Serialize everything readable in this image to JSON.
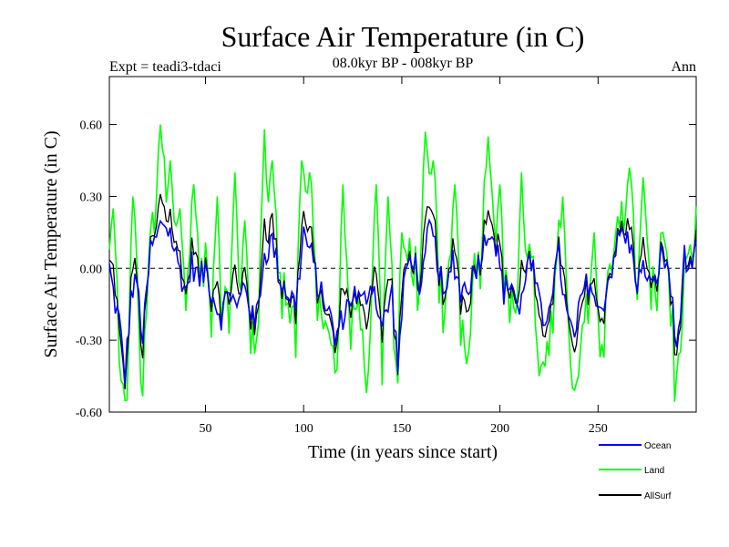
{
  "chart_data": {
    "type": "line",
    "title": "Surface Air Temperature (in C)",
    "subtitle": "08.0kyr BP - 008kyr BP",
    "left_label": "Expt = teadi3-tdaci",
    "right_label": "Ann",
    "xlabel": "Time (in years since start)",
    "ylabel": "Surface Air Temperature (in C)",
    "xlim": [
      1,
      300
    ],
    "ylim": [
      -0.6,
      0.8
    ],
    "xticks": [
      50,
      100,
      150,
      200,
      250
    ],
    "xtick_labels": [
      "50",
      "100",
      "150",
      "200",
      "250"
    ],
    "yticks": [
      -0.6,
      -0.3,
      0.0,
      0.3,
      0.6
    ],
    "ytick_labels": [
      "-0.60",
      "-0.30",
      "0.00",
      "0.30",
      "0.60"
    ],
    "zero_line": true,
    "legend_position": "bottom-right, below plot",
    "series": [
      {
        "name": "Ocean",
        "color": "#0000ff",
        "values": []
      },
      {
        "name": "Land",
        "color": "#00ff00",
        "values": []
      },
      {
        "name": "AllSurf",
        "color": "#000000",
        "values": []
      }
    ],
    "anchors": {
      "Ocean": [
        [
          1,
          0.0
        ],
        [
          4,
          -0.15
        ],
        [
          6,
          -0.22
        ],
        [
          9,
          -0.45
        ],
        [
          12,
          -0.12
        ],
        [
          15,
          -0.05
        ],
        [
          18,
          -0.3
        ],
        [
          22,
          0.08
        ],
        [
          25,
          0.12
        ],
        [
          28,
          0.2
        ],
        [
          32,
          0.15
        ],
        [
          35,
          0.05
        ],
        [
          40,
          -0.1
        ],
        [
          43,
          0.02
        ],
        [
          47,
          -0.05
        ],
        [
          50,
          0.0
        ],
        [
          54,
          -0.12
        ],
        [
          58,
          -0.2
        ],
        [
          62,
          -0.08
        ],
        [
          66,
          -0.18
        ],
        [
          70,
          -0.05
        ],
        [
          75,
          -0.25
        ],
        [
          80,
          0.05
        ],
        [
          84,
          0.12
        ],
        [
          88,
          -0.05
        ],
        [
          92,
          -0.1
        ],
        [
          96,
          -0.15
        ],
        [
          100,
          0.15
        ],
        [
          104,
          0.05
        ],
        [
          108,
          -0.1
        ],
        [
          112,
          -0.15
        ],
        [
          116,
          -0.3
        ],
        [
          120,
          -0.2
        ],
        [
          125,
          -0.1
        ],
        [
          130,
          -0.15
        ],
        [
          135,
          -0.05
        ],
        [
          140,
          -0.25
        ],
        [
          145,
          -0.1
        ],
        [
          148,
          -0.4
        ],
        [
          152,
          0.0
        ],
        [
          156,
          0.05
        ],
        [
          160,
          -0.1
        ],
        [
          164,
          0.18
        ],
        [
          168,
          0.05
        ],
        [
          172,
          -0.15
        ],
        [
          176,
          0.05
        ],
        [
          180,
          -0.1
        ],
        [
          185,
          -0.05
        ],
        [
          190,
          0.05
        ],
        [
          195,
          0.18
        ],
        [
          198,
          0.1
        ],
        [
          202,
          -0.1
        ],
        [
          206,
          -0.05
        ],
        [
          210,
          -0.2
        ],
        [
          214,
          0.05
        ],
        [
          218,
          -0.05
        ],
        [
          222,
          -0.25
        ],
        [
          226,
          -0.1
        ],
        [
          230,
          0.05
        ],
        [
          234,
          -0.2
        ],
        [
          238,
          -0.3
        ],
        [
          242,
          -0.1
        ],
        [
          246,
          -0.05
        ],
        [
          250,
          -0.2
        ],
        [
          254,
          -0.1
        ],
        [
          258,
          0.05
        ],
        [
          262,
          0.15
        ],
        [
          266,
          0.1
        ],
        [
          270,
          -0.05
        ],
        [
          274,
          0.0
        ],
        [
          278,
          -0.1
        ],
        [
          282,
          0.05
        ],
        [
          286,
          0.0
        ],
        [
          290,
          -0.35
        ],
        [
          294,
          0.05
        ],
        [
          298,
          -0.05
        ],
        [
          300,
          0.1
        ]
      ],
      "LandExtra": [
        [
          3,
          0.25
        ],
        [
          8,
          -0.45
        ],
        [
          10,
          -0.55
        ],
        [
          13,
          0.3
        ],
        [
          27,
          0.6
        ],
        [
          32,
          0.45
        ],
        [
          37,
          0.25
        ],
        [
          44,
          0.35
        ],
        [
          56,
          0.3
        ],
        [
          65,
          0.4
        ],
        [
          70,
          0.2
        ],
        [
          80,
          0.58
        ],
        [
          84,
          0.45
        ],
        [
          99,
          0.45
        ],
        [
          103,
          0.4
        ],
        [
          114,
          -0.32
        ],
        [
          120,
          0.35
        ],
        [
          132,
          -0.52
        ],
        [
          137,
          0.35
        ],
        [
          143,
          0.3
        ],
        [
          150,
          0.15
        ],
        [
          162,
          0.57
        ],
        [
          166,
          0.45
        ],
        [
          177,
          0.35
        ],
        [
          183,
          -0.4
        ],
        [
          194,
          0.55
        ],
        [
          200,
          0.35
        ],
        [
          211,
          0.4
        ],
        [
          220,
          -0.45
        ],
        [
          232,
          0.3
        ],
        [
          240,
          -0.45
        ],
        [
          248,
          0.15
        ],
        [
          266,
          0.42
        ],
        [
          273,
          0.38
        ],
        [
          283,
          0.15
        ],
        [
          292,
          -0.35
        ],
        [
          297,
          0.1
        ]
      ]
    }
  },
  "legend": {
    "ocean_label": "Ocean",
    "land_label": "Land",
    "allsurf_label": "AllSurf"
  }
}
